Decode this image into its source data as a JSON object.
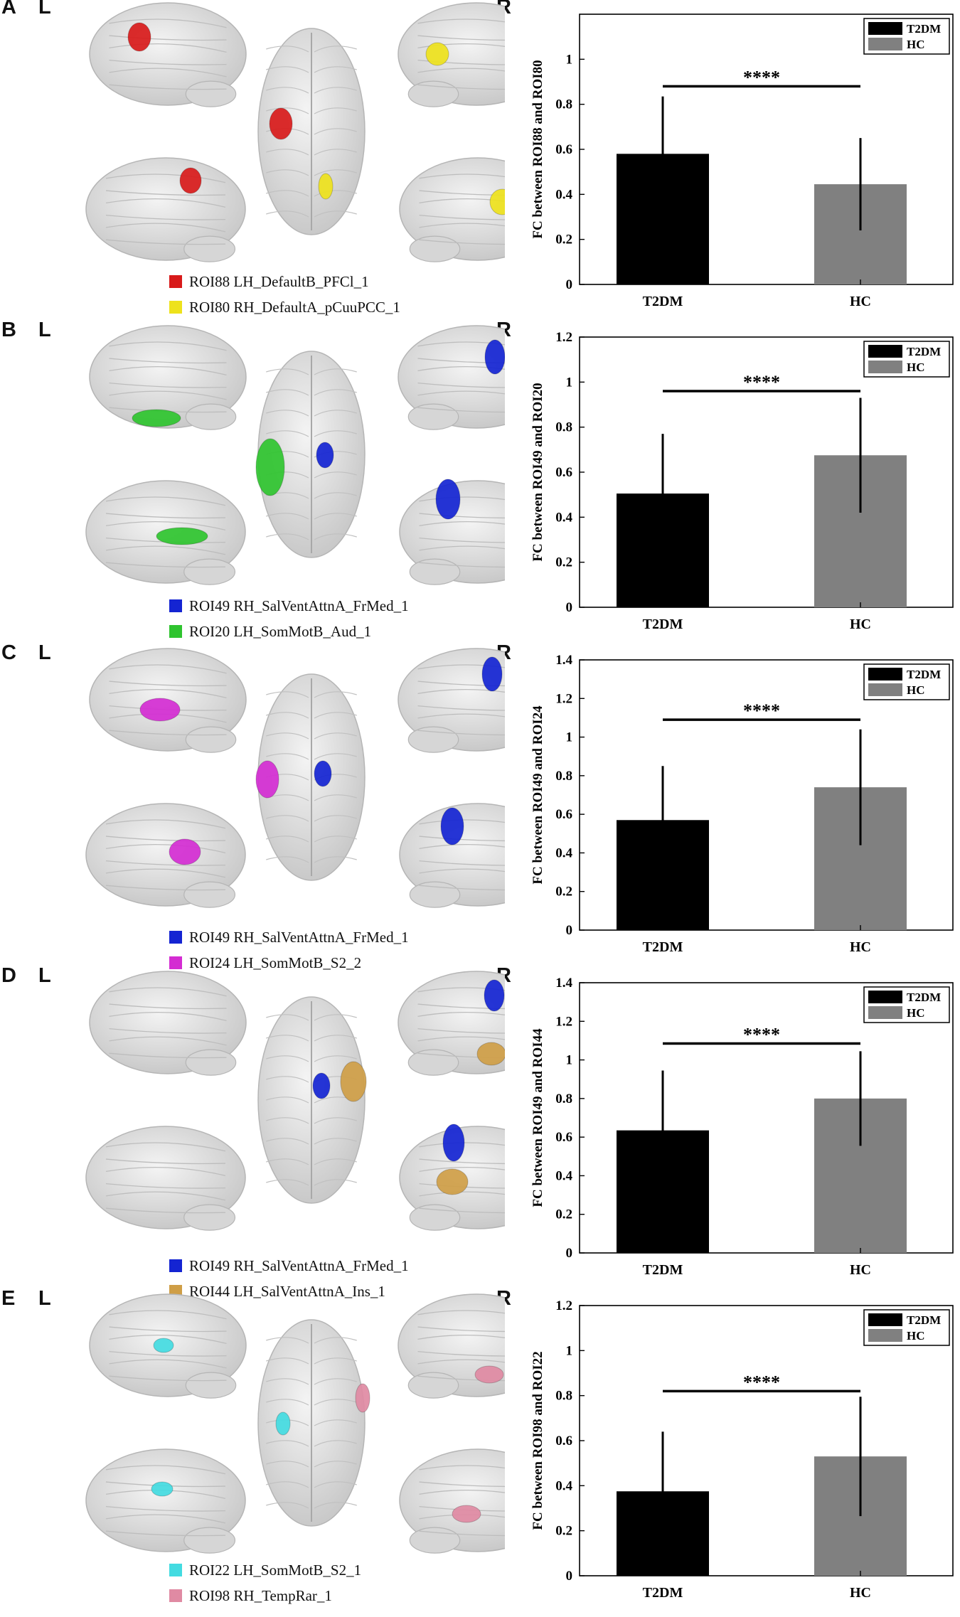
{
  "colors": {
    "t2dm_bar": "#000000",
    "hc_bar": "#808080",
    "red": "#d81a1a",
    "yellow": "#eee21c",
    "green": "#2fc42f",
    "blue": "#1424d2",
    "magenta": "#d42cd2",
    "tan": "#cf9e46",
    "cyan": "#43dbe1",
    "pink": "#e08aa3"
  },
  "panels": [
    {
      "label": "A",
      "left_label": "L",
      "right_label": "R",
      "legend": [
        {
          "text": "ROI88 LH_DefaultB_PFCl_1",
          "color": "#d81a1a"
        },
        {
          "text": "ROI80 RH_DefaultA_pCuuPCC_1",
          "color": "#eee21c"
        }
      ]
    },
    {
      "label": "B",
      "left_label": "L",
      "right_label": "R",
      "legend": [
        {
          "text": "ROI49 RH_SalVentAttnA_FrMed_1",
          "color": "#1424d2"
        },
        {
          "text": "ROI20 LH_SomMotB_Aud_1",
          "color": "#2fc42f"
        }
      ]
    },
    {
      "label": "C",
      "left_label": "L",
      "right_label": "R",
      "legend": [
        {
          "text": "ROI49 RH_SalVentAttnA_FrMed_1",
          "color": "#1424d2"
        },
        {
          "text": "ROI24 LH_SomMotB_S2_2",
          "color": "#d42cd2"
        }
      ]
    },
    {
      "label": "D",
      "left_label": "L",
      "right_label": "R",
      "legend": [
        {
          "text": "ROI49 RH_SalVentAttnA_FrMed_1",
          "color": "#1424d2"
        },
        {
          "text": "ROI44 LH_SalVentAttnA_Ins_1",
          "color": "#cf9e46"
        }
      ]
    },
    {
      "label": "E",
      "left_label": "L",
      "right_label": "R",
      "legend": [
        {
          "text": "ROI22 LH_SomMotB_S2_1",
          "color": "#43dbe1"
        },
        {
          "text": "ROI98 RH_TempRar_1",
          "color": "#e08aa3"
        }
      ]
    }
  ],
  "chart_data": [
    {
      "type": "bar",
      "categories": [
        "T2DM",
        "HC"
      ],
      "values": [
        0.58,
        0.445
      ],
      "errors": [
        0.255,
        0.205
      ],
      "ylabel": "FC between ROI88 and ROI80",
      "ylim": [
        0,
        1.2
      ],
      "yticks": [
        0,
        0.2,
        0.4,
        0.6,
        0.8,
        1
      ],
      "ytick_labels": [
        "0",
        "0.2",
        "0.4",
        "0.6",
        "0.8",
        "1"
      ],
      "legend": [
        "T2DM",
        "HC"
      ],
      "significance": "****",
      "sig_level": 0.88
    },
    {
      "type": "bar",
      "categories": [
        "T2DM",
        "HC"
      ],
      "values": [
        0.505,
        0.675
      ],
      "errors": [
        0.265,
        0.255
      ],
      "ylabel": "FC between ROI49 and ROI20",
      "ylim": [
        0,
        1.2
      ],
      "yticks": [
        0,
        0.2,
        0.4,
        0.6,
        0.8,
        1,
        1.2
      ],
      "ytick_labels": [
        "0",
        "0.2",
        "0.4",
        "0.6",
        "0.8",
        "1",
        "1.2"
      ],
      "legend": [
        "T2DM",
        "HC"
      ],
      "significance": "****",
      "sig_level": 0.96
    },
    {
      "type": "bar",
      "categories": [
        "T2DM",
        "HC"
      ],
      "values": [
        0.57,
        0.74
      ],
      "errors": [
        0.28,
        0.3
      ],
      "ylabel": "FC between ROI49 and ROI24",
      "ylim": [
        0,
        1.4
      ],
      "yticks": [
        0,
        0.2,
        0.4,
        0.6,
        0.8,
        1,
        1.2,
        1.4
      ],
      "ytick_labels": [
        "0",
        "0.2",
        "0.4",
        "0.6",
        "0.8",
        "1",
        "1.2",
        "1.4"
      ],
      "legend": [
        "T2DM",
        "HC"
      ],
      "significance": "****",
      "sig_level": 1.09
    },
    {
      "type": "bar",
      "categories": [
        "T2DM",
        "HC"
      ],
      "values": [
        0.635,
        0.8
      ],
      "errors": [
        0.31,
        0.245
      ],
      "ylabel": "FC between ROI49 and ROI44",
      "ylim": [
        0,
        1.4
      ],
      "yticks": [
        0,
        0.2,
        0.4,
        0.6,
        0.8,
        1,
        1.2,
        1.4
      ],
      "ytick_labels": [
        "0",
        "0.2",
        "0.4",
        "0.6",
        "0.8",
        "1",
        "1.2",
        "1.4"
      ],
      "legend": [
        "T2DM",
        "HC"
      ],
      "significance": "****",
      "sig_level": 1.085
    },
    {
      "type": "bar",
      "categories": [
        "T2DM",
        "HC"
      ],
      "values": [
        0.375,
        0.53
      ],
      "errors": [
        0.265,
        0.265
      ],
      "ylabel": "FC between ROI98 and ROI22",
      "ylim": [
        0,
        1.2
      ],
      "yticks": [
        0,
        0.2,
        0.4,
        0.6,
        0.8,
        1,
        1.2
      ],
      "ytick_labels": [
        "0",
        "0.2",
        "0.4",
        "0.6",
        "0.8",
        "1",
        "1.2"
      ],
      "legend": [
        "T2DM",
        "HC"
      ],
      "significance": "****",
      "sig_level": 0.82
    }
  ]
}
